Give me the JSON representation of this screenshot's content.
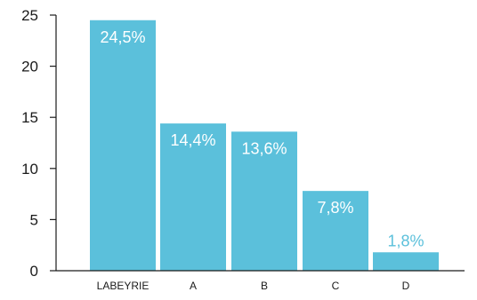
{
  "chart_data": {
    "type": "bar",
    "title": "",
    "xlabel": "",
    "ylabel": "",
    "ylim": [
      0,
      25
    ],
    "yticks": [
      0,
      5,
      10,
      15,
      20,
      25
    ],
    "grid": false,
    "categories": [
      "LABEYRIE",
      "A",
      "B",
      "C",
      "D"
    ],
    "values": [
      24.5,
      14.4,
      13.6,
      7.8,
      1.8
    ],
    "data_labels": [
      "24,5%",
      "14,4%",
      "13,6%",
      "7,8%",
      "1,8%"
    ],
    "colors": {
      "bar": "#5bc0db",
      "label_inside": "#ffffff",
      "label_outside": "#5bc0db",
      "axis": "#1a1a1a"
    }
  }
}
